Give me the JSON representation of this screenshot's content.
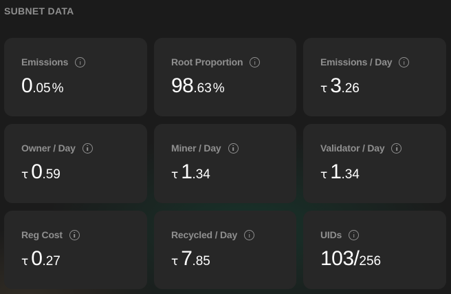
{
  "section": {
    "title": "SUBNET DATA"
  },
  "cards": [
    {
      "label": "Emissions",
      "currency": "",
      "int": "0",
      "dec": ".05",
      "suffix": "%"
    },
    {
      "label": "Root Proportion",
      "currency": "",
      "int": "98",
      "dec": ".63",
      "suffix": "%"
    },
    {
      "label": "Emissions / Day",
      "currency": "τ",
      "int": "3",
      "dec": ".26",
      "suffix": ""
    },
    {
      "label": "Owner / Day",
      "currency": "τ",
      "int": "0",
      "dec": ".59",
      "suffix": ""
    },
    {
      "label": "Miner / Day",
      "currency": "τ",
      "int": "1",
      "dec": ".34",
      "suffix": ""
    },
    {
      "label": "Validator / Day",
      "currency": "τ",
      "int": "1",
      "dec": ".34",
      "suffix": ""
    },
    {
      "label": "Reg Cost",
      "currency": "τ",
      "int": "0",
      "dec": ".27",
      "suffix": ""
    },
    {
      "label": "Recycled / Day",
      "currency": "τ",
      "int": "7",
      "dec": ".85",
      "suffix": ""
    },
    {
      "label": "UIDs",
      "currency": "",
      "int": "103/",
      "dec": "256",
      "suffix": ""
    }
  ],
  "icons": {
    "info": "info-circle-icon"
  },
  "colors": {
    "background": "#1b1b1b",
    "card": "#272727",
    "label": "#8f8f8f",
    "value": "#ffffff",
    "title": "#8e8e8e"
  }
}
